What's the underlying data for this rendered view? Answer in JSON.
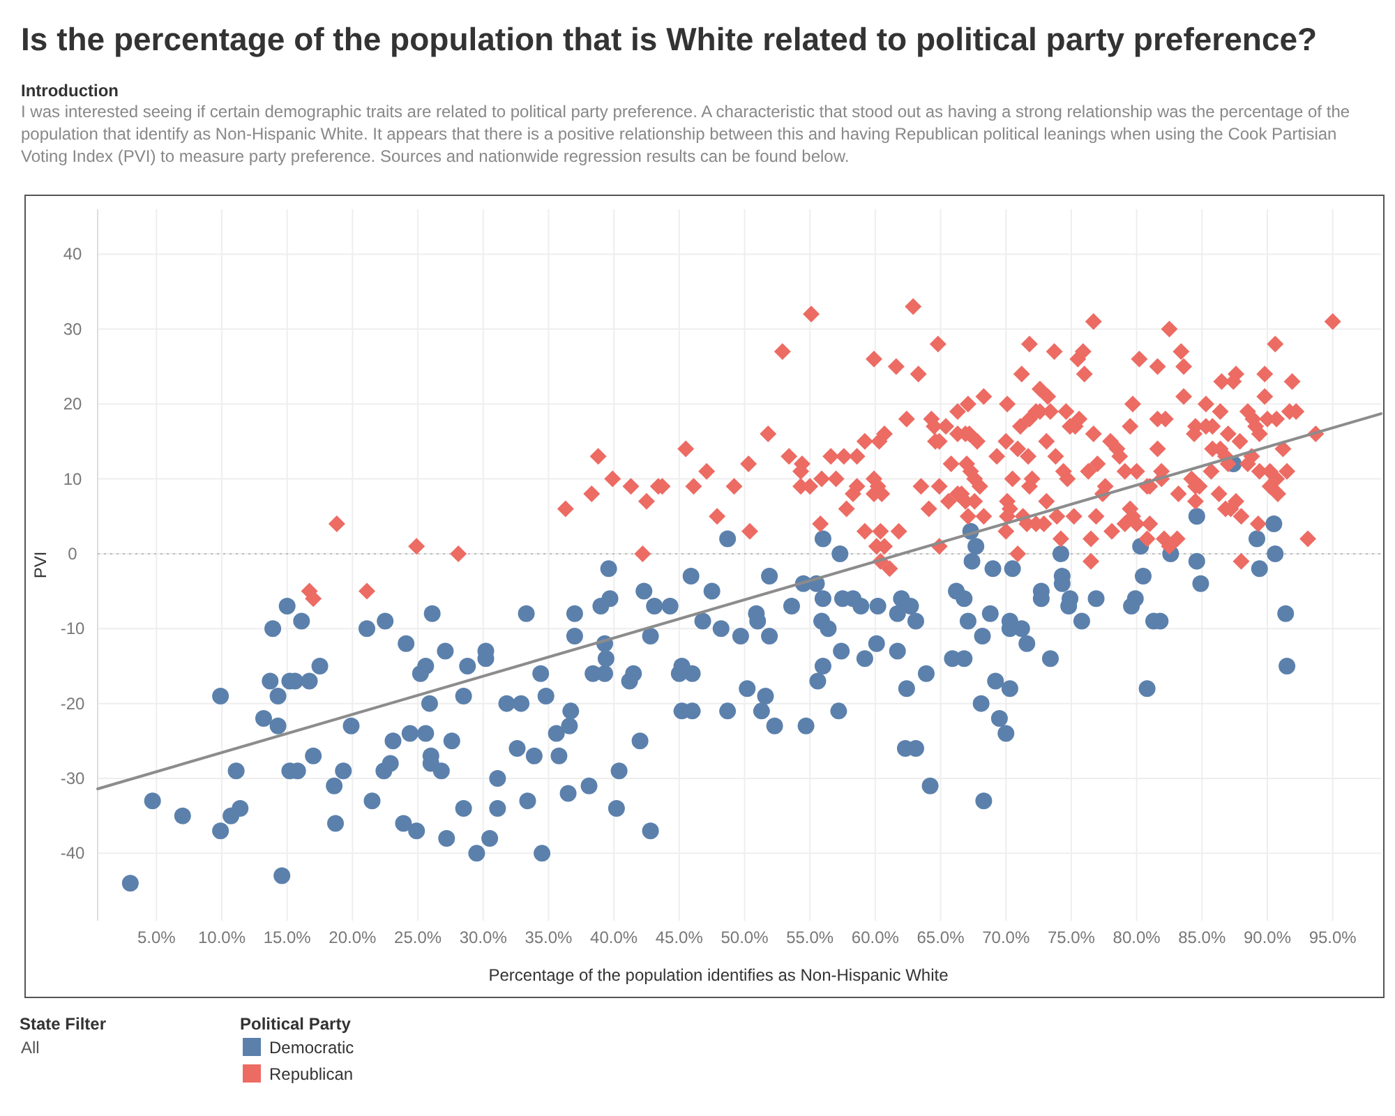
{
  "chart_data": {
    "type": "scatter",
    "title": "Is the percentage of the population that is White related to political party preference?",
    "subtitle": "Introduction",
    "annotations": [
      "I was interested seeing if certain demographic traits are related to political party preference. A characteristic that stood out as having a strong relationship was the percentage of the population that identify as Non-Hispanic White. It appears that there is a positive relationship between this and having Republican political leanings when using the Cook Partisian Voting Index (PVI) to measure party preference. Sources and nationwide regression results can be found below.",
      "State Filter",
      "All"
    ],
    "xlabel": "Percentage of the population identifies as Non-Hispanic White",
    "ylabel": "PVI",
    "legend_title": "Political Party",
    "legend": "bottom",
    "grid": true,
    "xlim": [
      0.5,
      98.7
    ],
    "ylim": [
      -49,
      46
    ],
    "xticks": [
      {
        "value": 5,
        "label": "5.0%"
      },
      {
        "value": 10,
        "label": "10.0%"
      },
      {
        "value": 15,
        "label": "15.0%"
      },
      {
        "value": 20,
        "label": "20.0%"
      },
      {
        "value": 25,
        "label": "25.0%"
      },
      {
        "value": 30,
        "label": "30.0%"
      },
      {
        "value": 35,
        "label": "35.0%"
      },
      {
        "value": 40,
        "label": "40.0%"
      },
      {
        "value": 45,
        "label": "45.0%"
      },
      {
        "value": 50,
        "label": "50.0%"
      },
      {
        "value": 55,
        "label": "55.0%"
      },
      {
        "value": 60,
        "label": "60.0%"
      },
      {
        "value": 65,
        "label": "65.0%"
      },
      {
        "value": 70,
        "label": "70.0%"
      },
      {
        "value": 75,
        "label": "75.0%"
      },
      {
        "value": 80,
        "label": "80.0%"
      },
      {
        "value": 85,
        "label": "85.0%"
      },
      {
        "value": 90,
        "label": "90.0%"
      },
      {
        "value": 95,
        "label": "95.0%"
      }
    ],
    "yticks": [
      -40,
      -30,
      -20,
      -10,
      0,
      10,
      20,
      30,
      40
    ],
    "ref_lines": [
      {
        "axis": "y",
        "value": 0,
        "color": "#bbbbbb",
        "line_style": "dotted"
      }
    ],
    "series": [
      {
        "name": "Democratic",
        "color": "#5b80ac",
        "marker": "circle",
        "x": [
          3.0,
          4.7,
          7.0,
          9.9,
          9.9,
          10.7,
          11.4,
          11.1,
          13.2,
          13.7,
          14.3,
          14.3,
          13.9,
          14.6,
          15.0,
          15.2,
          15.6,
          15.2,
          15.8,
          16.1,
          16.7,
          17.0,
          17.5,
          18.6,
          18.7,
          19.3,
          19.9,
          21.1,
          21.5,
          22.5,
          22.9,
          22.4,
          23.1,
          23.9,
          24.1,
          24.4,
          24.9,
          25.2,
          25.6,
          25.6,
          25.9,
          26.0,
          26.0,
          26.1,
          26.8,
          27.1,
          27.2,
          27.6,
          28.5,
          28.5,
          28.8,
          29.5,
          30.2,
          30.2,
          30.5,
          31.1,
          31.1,
          31.8,
          32.6,
          32.9,
          33.3,
          33.4,
          33.9,
          34.4,
          34.5,
          34.8,
          35.6,
          35.8,
          36.5,
          36.6,
          36.7,
          37.0,
          37.0,
          38.1,
          38.4,
          39.0,
          39.7,
          39.3,
          39.4,
          39.3,
          39.6,
          40.2,
          40.4,
          41.2,
          41.5,
          42.0,
          42.3,
          42.8,
          42.8,
          43.1,
          44.3,
          45.9,
          47.5,
          48.7,
          46.8,
          48.2,
          49.7,
          50.9,
          51.0,
          51.9,
          51.9,
          45.2,
          45.0,
          46.0,
          45.2,
          46.0,
          48.7,
          50.2,
          51.3,
          51.6,
          52.3,
          53.6,
          54.7,
          54.5,
          55.5,
          56.0,
          56.0,
          55.9,
          56.4,
          55.6,
          56.0,
          57.2,
          57.3,
          57.4,
          57.5,
          58.3,
          58.9,
          60.2,
          59.2,
          60.1,
          61.7,
          61.7,
          62.0,
          62.7,
          63.1,
          62.4,
          63.9,
          62.3,
          63.1,
          64.2,
          66.2,
          66.8,
          65.9,
          66.8,
          67.1,
          67.3,
          67.7,
          67.4,
          68.2,
          68.1,
          68.3,
          68.8,
          69.0,
          69.2,
          69.5,
          70.0,
          70.3,
          70.3,
          70.3,
          71.2,
          70.5,
          71.6,
          72.7,
          72.7,
          73.4,
          74.2,
          74.3,
          74.3,
          74.9,
          74.8,
          75.8,
          76.9,
          79.6,
          79.9,
          80.3,
          80.5,
          80.8,
          81.3,
          81.8,
          82.6,
          84.6,
          84.6,
          84.9,
          87.4,
          89.2,
          89.4,
          90.5,
          90.6,
          91.4,
          91.5
        ],
        "values": [
          -44,
          -33,
          -35,
          -19,
          -37,
          -35,
          -34,
          -29,
          -22,
          -17,
          -19,
          -23,
          -10,
          -43,
          -7,
          -17,
          -17,
          -29,
          -29,
          -9,
          -17,
          -27,
          -15,
          -31,
          -36,
          -29,
          -23,
          -10,
          -33,
          -9,
          -28,
          -29,
          -25,
          -36,
          -12,
          -24,
          -37,
          -16,
          -15,
          -24,
          -20,
          -27,
          -28,
          -8,
          -29,
          -13,
          -38,
          -25,
          -19,
          -34,
          -15,
          -40,
          -13,
          -14,
          -38,
          -34,
          -30,
          -20,
          -26,
          -20,
          -8,
          -33,
          -27,
          -16,
          -40,
          -19,
          -24,
          -27,
          -32,
          -23,
          -21,
          -8,
          -11,
          -31,
          -16,
          -7,
          -6,
          -12,
          -14,
          -16,
          -2,
          -34,
          -29,
          -17,
          -16,
          -25,
          -5,
          -37,
          -11,
          -7,
          -7,
          -3,
          -5,
          2,
          -9,
          -10,
          -11,
          -8,
          -9,
          -3,
          -11,
          -15,
          -16,
          -16,
          -21,
          -21,
          -21,
          -18,
          -21,
          -19,
          -23,
          -7,
          -23,
          -4,
          -4,
          2,
          -6,
          -9,
          -10,
          -17,
          -15,
          -21,
          0,
          -13,
          -6,
          -6,
          -7,
          -7,
          -14,
          -12,
          -8,
          -13,
          -6,
          -7,
          -9,
          -18,
          -16,
          -26,
          -26,
          -31,
          -5,
          -6,
          -14,
          -14,
          -9,
          3,
          1,
          -1,
          -11,
          -20,
          -33,
          -8,
          -2,
          -17,
          -22,
          -24,
          -18,
          -9,
          -10,
          -10,
          -2,
          -12,
          -5,
          -6,
          -14,
          0,
          -3,
          -4,
          -6,
          -7,
          -9,
          -6,
          -7,
          -6,
          1,
          -3,
          -18,
          -9,
          -9,
          0,
          5,
          -1,
          -4,
          12,
          2,
          -2,
          4,
          0,
          -8,
          -15
        ]
      },
      {
        "name": "Republican",
        "color": "#ec6b63",
        "marker": "diamond",
        "x": [
          16.7,
          17.0,
          18.8,
          21.1,
          24.9,
          28.1,
          36.3,
          38.3,
          38.8,
          39.9,
          41.3,
          42.5,
          43.4,
          43.7,
          42.2,
          45.5,
          46.1,
          47.1,
          47.9,
          49.2,
          50.3,
          50.4,
          51.8,
          52.9,
          53.4,
          54.3,
          54.3,
          54.4,
          55.0,
          55.1,
          55.8,
          55.9,
          57.0,
          56.6,
          57.6,
          58.6,
          57.8,
          58.3,
          58.6,
          59.2,
          59.2,
          59.9,
          59.9,
          60.2,
          59.9,
          60.5,
          60.4,
          60.1,
          60.7,
          60.4,
          61.1,
          60.3,
          60.7,
          61.6,
          61.8,
          62.4,
          62.9,
          63.3,
          63.5,
          64.1,
          64.3,
          64.5,
          64.6,
          64.9,
          64.8,
          64.9,
          64.9,
          65.4,
          65.6,
          66.3,
          66.6,
          66.9,
          65.8,
          66.3,
          66.3,
          66.9,
          67.2,
          67.0,
          67.3,
          67.6,
          67.1,
          67.1,
          67.6,
          67.8,
          68.0,
          68.3,
          68.3,
          69.3,
          70.0,
          70.0,
          70.1,
          70.1,
          70.3,
          70.1,
          70.5,
          70.9,
          70.9,
          71.2,
          71.1,
          71.3,
          71.6,
          71.7,
          71.8,
          71.8,
          71.8,
          72.3,
          72.6,
          72.0,
          72.3,
          72.9,
          72.6,
          73.2,
          73.1,
          73.1,
          73.4,
          73.7,
          73.8,
          73.9,
          74.2,
          74.4,
          74.7,
          74.6,
          74.9,
          75.3,
          75.6,
          75.2,
          75.5,
          75.9,
          76.0,
          76.3,
          76.5,
          76.5,
          76.7,
          76.7,
          76.9,
          77.0,
          77.4,
          77.6,
          78.0,
          78.5,
          78.7,
          78.1,
          79.1,
          80.0,
          79.1,
          79.5,
          79.7,
          80.0,
          79.5,
          79.7,
          80.2,
          80.8,
          81.0,
          80.8,
          81.0,
          81.6,
          81.6,
          82.2,
          81.6,
          81.9,
          81.9,
          82.1,
          82.5,
          83.1,
          82.5,
          83.2,
          83.4,
          83.6,
          83.6,
          84.2,
          84.5,
          84.8,
          84.4,
          84.5,
          85.3,
          85.8,
          84.5,
          85.3,
          85.7,
          85.8,
          86.4,
          86.8,
          87.0,
          86.3,
          86.8,
          87.2,
          87.6,
          86.4,
          86.5,
          87.4,
          87.6,
          87.0,
          87.9,
          88.0,
          88.0,
          88.5,
          88.9,
          89.1,
          89.4,
          88.5,
          88.8,
          89.4,
          90.2,
          89.3,
          89.8,
          89.8,
          90.0,
          90.7,
          90.2,
          90.7,
          90.8,
          90.6,
          91.2,
          91.5,
          91.7,
          92.2,
          91.9,
          93.1,
          93.7,
          95.0
        ],
        "values": [
          -5,
          -6,
          4,
          -5,
          1,
          0,
          6,
          8,
          13,
          10,
          9,
          7,
          9,
          9,
          0,
          14,
          9,
          11,
          5,
          9,
          12,
          3,
          16,
          27,
          13,
          9,
          11,
          12,
          9,
          32,
          4,
          10,
          10,
          13,
          13,
          13,
          6,
          8,
          9,
          3,
          15,
          26,
          10,
          9,
          8,
          8,
          3,
          1,
          1,
          -1,
          -2,
          15,
          16,
          25,
          3,
          18,
          33,
          24,
          9,
          6,
          18,
          17,
          15,
          15,
          28,
          9,
          1,
          17,
          7,
          8,
          8,
          7,
          12,
          19,
          16,
          16,
          16,
          12,
          11,
          10,
          20,
          5,
          7,
          15,
          9,
          21,
          5,
          13,
          15,
          3,
          20,
          7,
          6,
          5,
          10,
          14,
          0,
          24,
          17,
          5,
          4,
          13,
          9,
          28,
          18,
          19,
          19,
          10,
          4,
          4,
          22,
          21,
          15,
          7,
          19,
          27,
          13,
          5,
          2,
          11,
          10,
          19,
          17,
          17,
          18,
          5,
          26,
          27,
          24,
          11,
          2,
          -1,
          31,
          16,
          5,
          12,
          8,
          9,
          15,
          14,
          13,
          3,
          11,
          11,
          4,
          6,
          5,
          4,
          17,
          20,
          26,
          9,
          9,
          2,
          4,
          25,
          18,
          18,
          14,
          11,
          10,
          2,
          1,
          2,
          30,
          8,
          27,
          25,
          21,
          10,
          9,
          9,
          16,
          17,
          17,
          17,
          7,
          20,
          11,
          14,
          14,
          13,
          12,
          8,
          6,
          6,
          7,
          19,
          23,
          23,
          24,
          16,
          15,
          5,
          -1,
          19,
          18,
          17,
          16,
          12,
          13,
          11,
          11,
          4,
          24,
          21,
          18,
          18,
          9,
          10,
          8,
          28,
          14,
          11,
          19,
          19,
          23,
          2,
          16,
          31
        ]
      },
      {
        "type": "line",
        "color": "#8c8c8c",
        "x": [
          0.5,
          98.7
        ],
        "values": [
          -31.4,
          18.7
        ]
      }
    ]
  }
}
